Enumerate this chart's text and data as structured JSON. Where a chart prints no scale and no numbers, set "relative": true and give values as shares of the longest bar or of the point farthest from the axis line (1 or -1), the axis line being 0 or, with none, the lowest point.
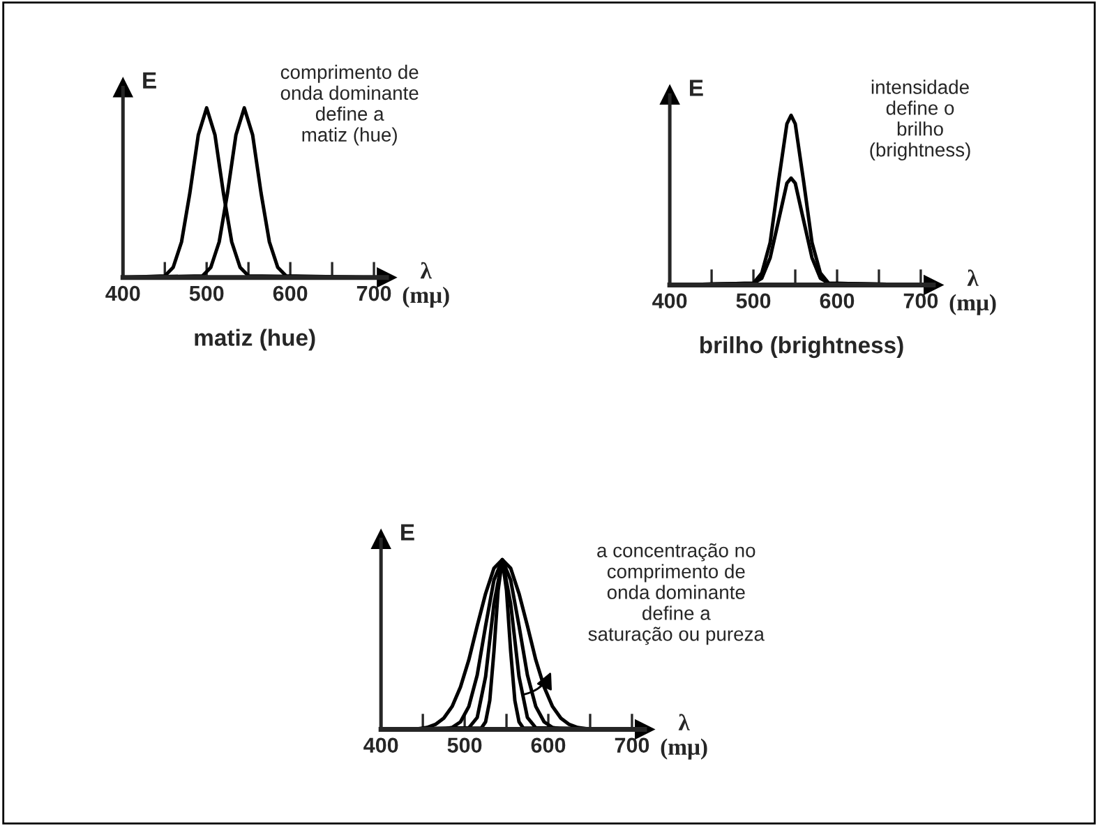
{
  "chart_data": [
    {
      "type": "line",
      "title": "matiz (hue)",
      "xlabel": "λ\n(mμ)",
      "ylabel": "E",
      "relative": true,
      "annotations": [
        "comprimento de\nonda dominante\ndefine a\nmatiz (hue)"
      ],
      "xlim": [
        400,
        715
      ],
      "xticks": [
        400,
        {
          "value": 450,
          "label": null
        },
        500,
        {
          "value": 550,
          "label": null
        },
        600,
        {
          "value": 650,
          "label": null
        },
        700
      ],
      "series": [
        {
          "color": "#000000",
          "x": [
            400,
            450,
            460,
            470,
            480,
            490,
            500,
            510,
            520,
            530,
            540,
            550,
            700
          ],
          "values": [
            0,
            0.01,
            0.06,
            0.21,
            0.5,
            0.84,
            1,
            0.84,
            0.5,
            0.21,
            0.06,
            0.01,
            0
          ]
        },
        {
          "color": "#000000",
          "x": [
            400,
            495,
            505,
            515,
            525,
            535,
            545,
            555,
            565,
            575,
            585,
            595,
            700
          ],
          "values": [
            0,
            0.01,
            0.06,
            0.21,
            0.5,
            0.84,
            1,
            0.84,
            0.5,
            0.21,
            0.06,
            0.01,
            0
          ]
        }
      ]
    },
    {
      "type": "line",
      "title": "brilho (brightness)",
      "xlabel": "λ\n(mμ)",
      "ylabel": "E",
      "relative": true,
      "annotations": [
        "intensidade\ndefine o\nbrilho\n(brightness)"
      ],
      "xlim": [
        400,
        715
      ],
      "xticks": [
        400,
        {
          "value": 450,
          "label": null
        },
        500,
        {
          "value": 550,
          "label": null
        },
        600,
        {
          "value": 650,
          "label": null
        },
        700
      ],
      "series": [
        {
          "color": "#000000",
          "x": [
            400,
            500,
            510,
            520,
            530,
            540,
            545,
            550,
            560,
            570,
            580,
            590,
            700
          ],
          "values": [
            0,
            0.01,
            0.07,
            0.25,
            0.61,
            0.95,
            1,
            0.95,
            0.61,
            0.25,
            0.07,
            0.01,
            0
          ]
        },
        {
          "color": "#000000",
          "x": [
            400,
            500,
            510,
            520,
            530,
            540,
            545,
            550,
            560,
            570,
            580,
            590,
            700
          ],
          "values": [
            0,
            0.01,
            0.04,
            0.16,
            0.38,
            0.6,
            0.63,
            0.6,
            0.38,
            0.16,
            0.04,
            0.01,
            0
          ]
        }
      ]
    },
    {
      "type": "line",
      "xlabel": "λ\n(mμ)",
      "ylabel": "E",
      "relative": true,
      "annotations": [
        "a concentração no\ncomprimento de\nonda dominante\ndefine a\nsaturação ou pureza"
      ],
      "xlim": [
        400,
        715
      ],
      "xticks": [
        400,
        {
          "value": 450,
          "label": null
        },
        500,
        {
          "value": 550,
          "label": null
        },
        600,
        {
          "value": 650,
          "label": null
        },
        700
      ],
      "series": [
        {
          "color": "#000000",
          "x": [
            400,
            445,
            455,
            465,
            475,
            485,
            495,
            505,
            515,
            525,
            535,
            545,
            555,
            565,
            575,
            585,
            595,
            605,
            615,
            625,
            635,
            645,
            700
          ],
          "values": [
            0,
            0.004,
            0.011,
            0.029,
            0.066,
            0.135,
            0.25,
            0.41,
            0.61,
            0.8,
            0.95,
            1,
            0.95,
            0.8,
            0.61,
            0.41,
            0.25,
            0.135,
            0.066,
            0.029,
            0.011,
            0.004,
            0
          ]
        },
        {
          "color": "#000000",
          "x": [
            400,
            475,
            485,
            495,
            505,
            515,
            525,
            535,
            545,
            555,
            565,
            575,
            585,
            595,
            605,
            615,
            700
          ],
          "values": [
            0,
            0.002,
            0.011,
            0.044,
            0.135,
            0.32,
            0.61,
            0.88,
            1,
            0.88,
            0.61,
            0.32,
            0.135,
            0.044,
            0.011,
            0.002,
            0
          ]
        },
        {
          "color": "#000000",
          "x": [
            400,
            505,
            515,
            525,
            535,
            545,
            555,
            565,
            575,
            585,
            700
          ],
          "values": [
            0,
            0.009,
            0.07,
            0.31,
            0.74,
            1,
            0.74,
            0.31,
            0.07,
            0.009,
            0
          ]
        },
        {
          "color": "#000000",
          "x": [
            400,
            520,
            525,
            530,
            535,
            540,
            545,
            550,
            555,
            560,
            565,
            570,
            700
          ],
          "values": [
            0,
            0.008,
            0.044,
            0.17,
            0.46,
            0.82,
            1,
            0.82,
            0.46,
            0.17,
            0.044,
            0.008,
            0
          ]
        }
      ]
    }
  ]
}
